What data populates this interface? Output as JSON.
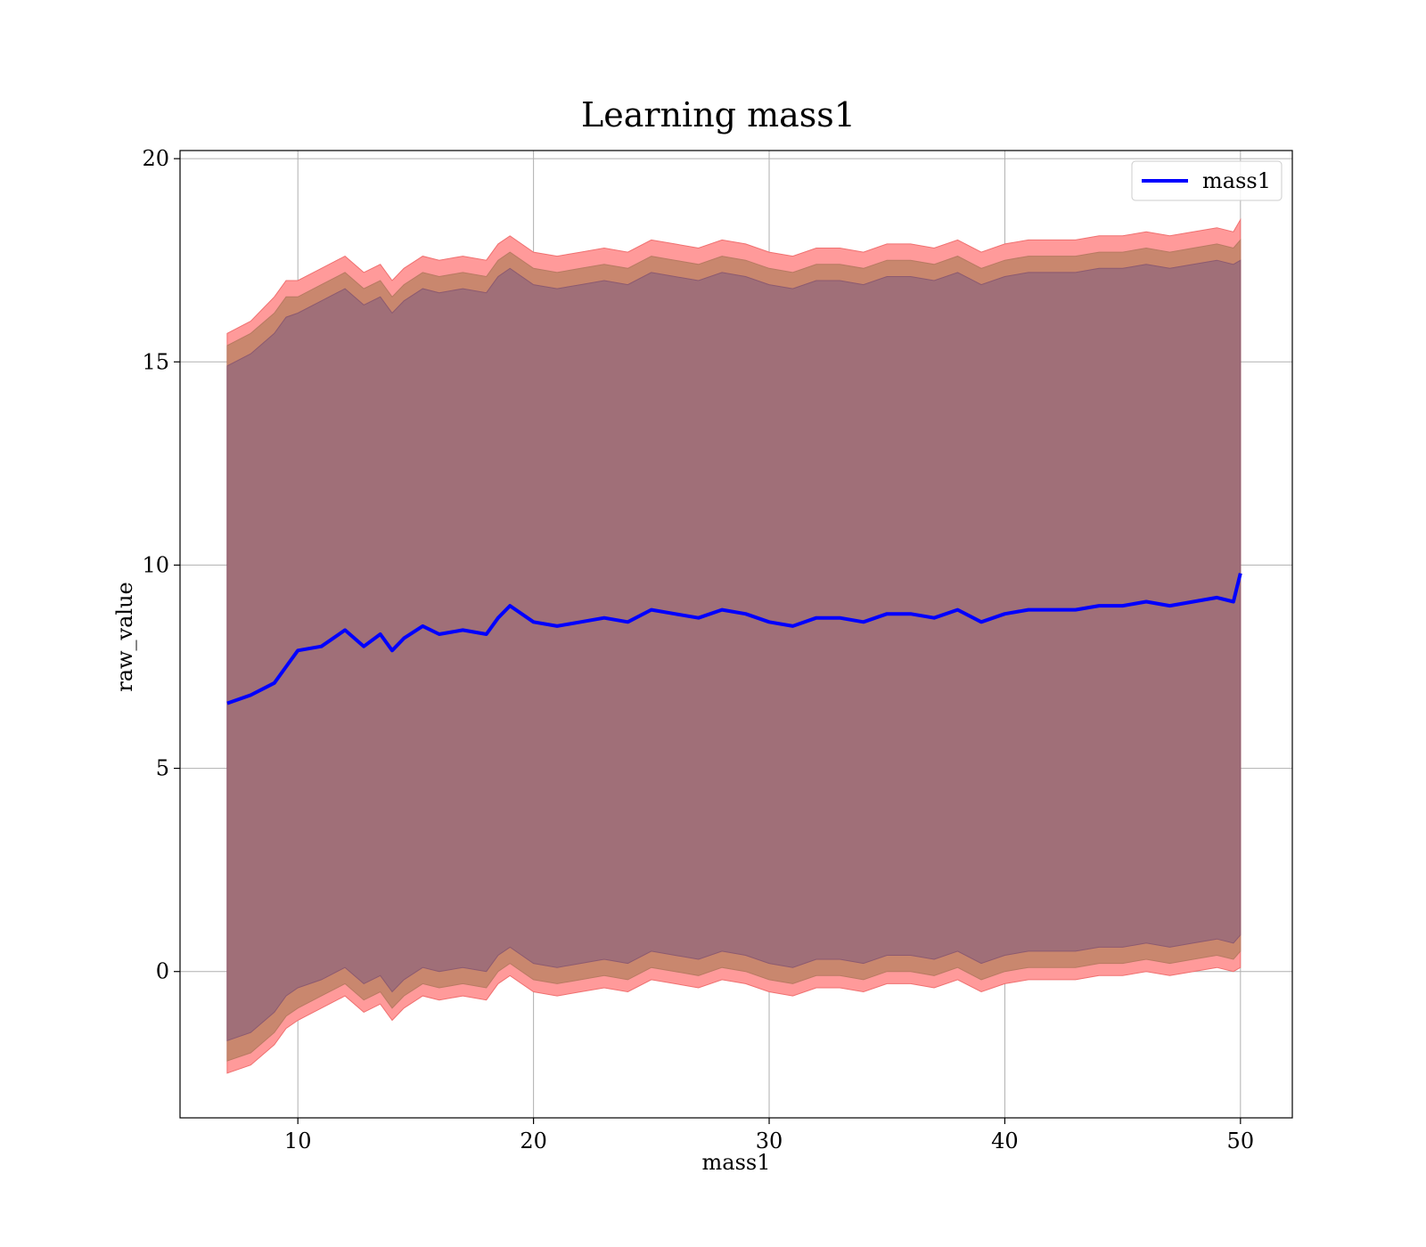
{
  "chart_data": {
    "type": "line",
    "title": "Learning mass1",
    "xlabel": "mass1",
    "ylabel": "raw_value",
    "xlim": [
      5,
      52.2
    ],
    "ylim": [
      -3.6,
      20.2
    ],
    "xticks": [
      10,
      20,
      30,
      40,
      50
    ],
    "yticks": [
      0,
      5,
      10,
      15,
      20
    ],
    "grid": true,
    "legend": {
      "position": "top-right",
      "entries": [
        "mass1"
      ]
    },
    "colors": {
      "line": "#0000ff",
      "outer_band": "#ff9a9a",
      "middle_band": "#c9876e",
      "inner_band": "#a06f78",
      "grid": "#b0b0b0"
    },
    "series": [
      {
        "name": "mass1",
        "x": [
          7.0,
          8.0,
          9.0,
          9.5,
          10.0,
          11.0,
          12.0,
          12.8,
          13.5,
          14.0,
          14.5,
          15.3,
          16.0,
          17.0,
          18.0,
          18.5,
          19.0,
          20.0,
          21.0,
          22.0,
          23.0,
          24.0,
          25.0,
          26.0,
          27.0,
          28.0,
          29.0,
          30.0,
          31.0,
          32.0,
          33.0,
          34.0,
          35.0,
          36.0,
          37.0,
          38.0,
          39.0,
          40.0,
          41.0,
          42.0,
          43.0,
          44.0,
          45.0,
          46.0,
          47.0,
          48.0,
          49.0,
          49.7,
          50.0
        ],
        "y": [
          6.6,
          6.8,
          7.1,
          7.5,
          7.9,
          8.0,
          8.4,
          8.0,
          8.3,
          7.9,
          8.2,
          8.5,
          8.3,
          8.4,
          8.3,
          8.7,
          9.0,
          8.6,
          8.5,
          8.6,
          8.7,
          8.6,
          8.9,
          8.8,
          8.7,
          8.9,
          8.8,
          8.6,
          8.5,
          8.7,
          8.7,
          8.6,
          8.8,
          8.8,
          8.7,
          8.9,
          8.6,
          8.8,
          8.9,
          8.9,
          8.9,
          9.0,
          9.0,
          9.1,
          9.0,
          9.1,
          9.2,
          9.1,
          9.8
        ],
        "band_outer_upper": [
          15.7,
          16.0,
          16.6,
          17.0,
          17.0,
          17.3,
          17.6,
          17.2,
          17.4,
          17.0,
          17.3,
          17.6,
          17.5,
          17.6,
          17.5,
          17.9,
          18.1,
          17.7,
          17.6,
          17.7,
          17.8,
          17.7,
          18.0,
          17.9,
          17.8,
          18.0,
          17.9,
          17.7,
          17.6,
          17.8,
          17.8,
          17.7,
          17.9,
          17.9,
          17.8,
          18.0,
          17.7,
          17.9,
          18.0,
          18.0,
          18.0,
          18.1,
          18.1,
          18.2,
          18.1,
          18.2,
          18.3,
          18.2,
          18.5
        ],
        "band_middle_upper": [
          15.4,
          15.7,
          16.2,
          16.6,
          16.6,
          16.9,
          17.2,
          16.8,
          17.0,
          16.6,
          16.9,
          17.2,
          17.1,
          17.2,
          17.1,
          17.5,
          17.7,
          17.3,
          17.2,
          17.3,
          17.4,
          17.3,
          17.6,
          17.5,
          17.4,
          17.6,
          17.5,
          17.3,
          17.2,
          17.4,
          17.4,
          17.3,
          17.5,
          17.5,
          17.4,
          17.6,
          17.3,
          17.5,
          17.6,
          17.6,
          17.6,
          17.7,
          17.7,
          17.8,
          17.7,
          17.8,
          17.9,
          17.8,
          18.0
        ],
        "band_inner_upper": [
          14.9,
          15.2,
          15.7,
          16.1,
          16.2,
          16.5,
          16.8,
          16.4,
          16.6,
          16.2,
          16.5,
          16.8,
          16.7,
          16.8,
          16.7,
          17.1,
          17.3,
          16.9,
          16.8,
          16.9,
          17.0,
          16.9,
          17.2,
          17.1,
          17.0,
          17.2,
          17.1,
          16.9,
          16.8,
          17.0,
          17.0,
          16.9,
          17.1,
          17.1,
          17.0,
          17.2,
          16.9,
          17.1,
          17.2,
          17.2,
          17.2,
          17.3,
          17.3,
          17.4,
          17.3,
          17.4,
          17.5,
          17.4,
          17.5
        ],
        "band_inner_lower": [
          -1.7,
          -1.5,
          -1.0,
          -0.6,
          -0.4,
          -0.2,
          0.1,
          -0.3,
          -0.1,
          -0.5,
          -0.2,
          0.1,
          0.0,
          0.1,
          0.0,
          0.4,
          0.6,
          0.2,
          0.1,
          0.2,
          0.3,
          0.2,
          0.5,
          0.4,
          0.3,
          0.5,
          0.4,
          0.2,
          0.1,
          0.3,
          0.3,
          0.2,
          0.4,
          0.4,
          0.3,
          0.5,
          0.2,
          0.4,
          0.5,
          0.5,
          0.5,
          0.6,
          0.6,
          0.7,
          0.6,
          0.7,
          0.8,
          0.7,
          0.9
        ],
        "band_middle_lower": [
          -2.2,
          -2.0,
          -1.5,
          -1.1,
          -0.9,
          -0.6,
          -0.3,
          -0.7,
          -0.5,
          -0.9,
          -0.6,
          -0.3,
          -0.4,
          -0.3,
          -0.4,
          0.0,
          0.2,
          -0.2,
          -0.3,
          -0.2,
          -0.1,
          -0.2,
          0.1,
          0.0,
          -0.1,
          0.1,
          0.0,
          -0.2,
          -0.3,
          -0.1,
          -0.1,
          -0.2,
          0.0,
          0.0,
          -0.1,
          0.1,
          -0.2,
          0.0,
          0.1,
          0.1,
          0.1,
          0.2,
          0.2,
          0.3,
          0.2,
          0.3,
          0.4,
          0.3,
          0.5
        ],
        "band_outer_lower": [
          -2.5,
          -2.3,
          -1.8,
          -1.4,
          -1.2,
          -0.9,
          -0.6,
          -1.0,
          -0.8,
          -1.2,
          -0.9,
          -0.6,
          -0.7,
          -0.6,
          -0.7,
          -0.3,
          -0.1,
          -0.5,
          -0.6,
          -0.5,
          -0.4,
          -0.5,
          -0.2,
          -0.3,
          -0.4,
          -0.2,
          -0.3,
          -0.5,
          -0.6,
          -0.4,
          -0.4,
          -0.5,
          -0.3,
          -0.3,
          -0.4,
          -0.2,
          -0.5,
          -0.3,
          -0.2,
          -0.2,
          -0.2,
          -0.1,
          -0.1,
          0.0,
          -0.1,
          0.0,
          0.1,
          0.0,
          0.1
        ]
      }
    ]
  }
}
